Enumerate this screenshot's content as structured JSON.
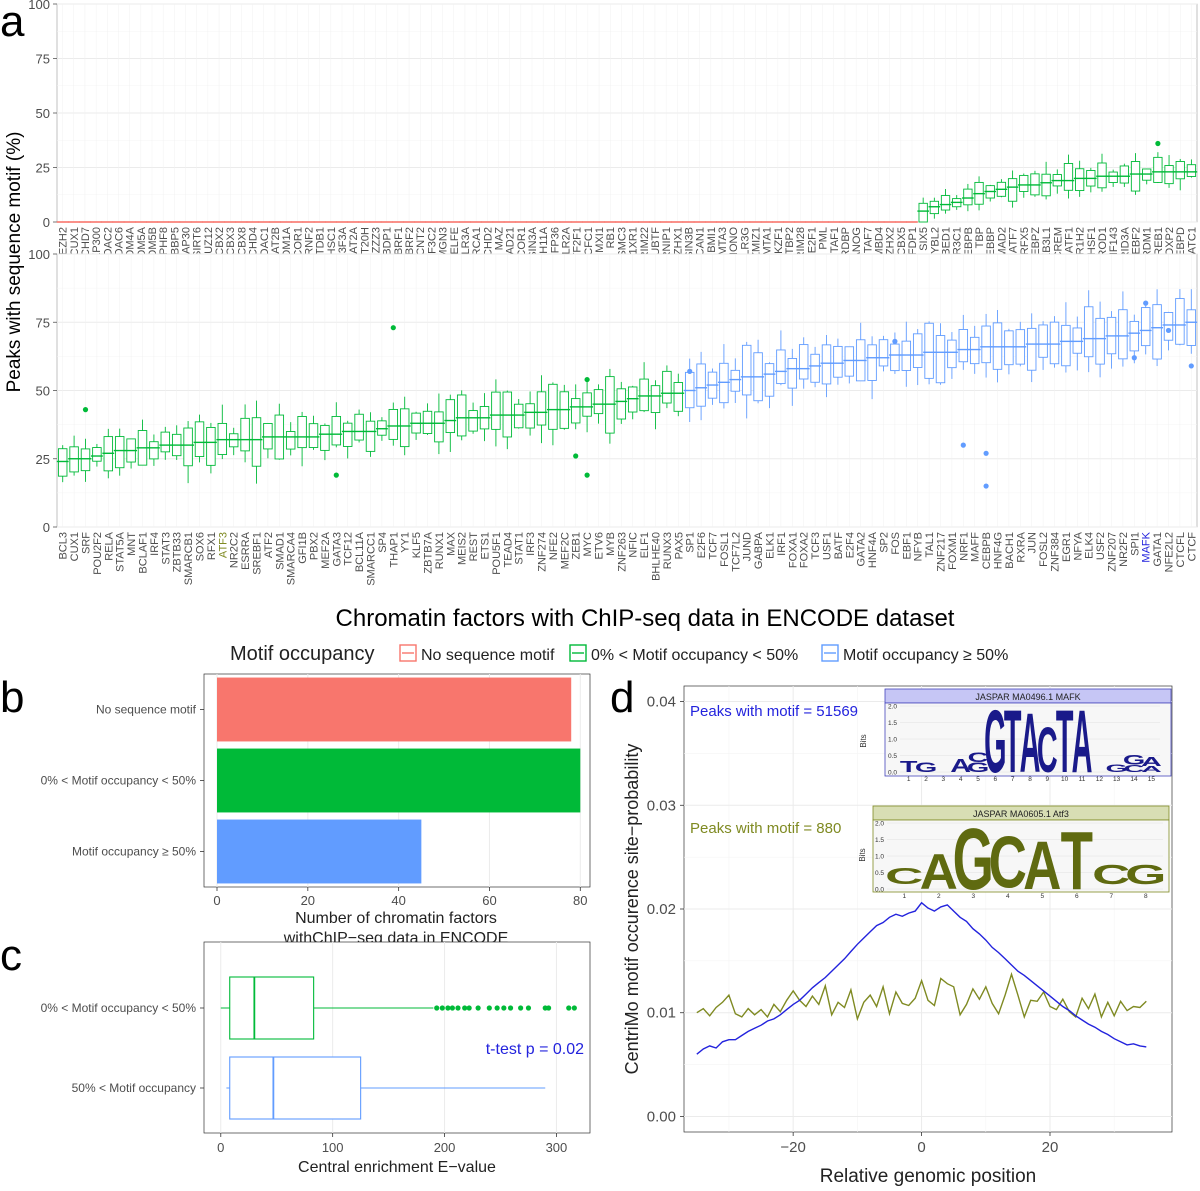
{
  "colors": {
    "red": "#F8766D",
    "green": "#00BA38",
    "blue": "#619CFF",
    "olive": "#7F8A22",
    "dark_blue": "#2323DD",
    "grid": "#ebebeb",
    "frame": "#999999"
  },
  "panel_labels": {
    "a": "a",
    "b": "b",
    "c": "c",
    "d": "d"
  },
  "annotations": {
    "peaks_mafk": "Peaks with motif = 51569",
    "peaks_atf3": "Peaks with motif = 880",
    "logo_mafk_title": "JASPAR MA0496.1 MAFK",
    "logo_atf3_title": "JASPAR MA0605.1 Atf3",
    "logo_bits_label": "Bits",
    "logo_mafk_seq": "TGAGCGTACTAGGCAA",
    "logo_atf3_seq": "CAGCATCG",
    "ttest": "t-test p = 0.02"
  },
  "chart_data": [
    {
      "panel": "a",
      "type": "box",
      "title": "",
      "ylabel": "Peaks with sequence motif (%)",
      "xlabel": "Chromatin factors with ChIP-seq data in ENCODE dataset",
      "ylim": [
        0,
        100
      ],
      "yticks": [
        0,
        25,
        50,
        75,
        100
      ],
      "legend": {
        "title": "Motif occupancy",
        "position": "bottom",
        "entries": [
          {
            "label": "No sequence motif",
            "key": "red"
          },
          {
            "label": "0% < Motif occupancy < 50%",
            "key": "green"
          },
          {
            "label": "Motif occupancy ≥ 50%",
            "key": "blue"
          }
        ]
      },
      "top_row": {
        "categories": [
          "EZH2",
          "CUX1",
          "CHD7",
          "EP300",
          "HDAC2",
          "HDAC6",
          "KDM4A",
          "KDM5A",
          "KDM5B",
          "PHF8",
          "RBBP5",
          "SAP30",
          "SIRT6",
          "SUZ12",
          "CBX2",
          "CBX3",
          "CBX8",
          "CHD4",
          "HDAC1",
          "KAT2B",
          "KDM1A",
          "NCOR1",
          "RNF2",
          "SETDB1",
          "WHSC1",
          "H3F3A",
          "KAT2A",
          "SUPT20H",
          "ZZZ3",
          "BDP1",
          "BRF1",
          "BRF2",
          "CCNT2",
          "GTF3C2",
          "HMGN3",
          "NELFE",
          "POLR3A",
          "BRCA1",
          "CHD2",
          "MAZ",
          "RAD21",
          "RCOR1",
          "SIN3A",
          "ZC3H11A",
          "ZFP36",
          "POLR2A",
          "GTF2F1",
          "HCFC1",
          "MXI1",
          "RB1",
          "SMC3",
          "TBL1XR1",
          "TRIM22",
          "UBTF",
          "WRNIP1",
          "ZHX1",
          "SIN3B",
          "ZKSCAN1",
          "BMI1",
          "MTA3",
          "NONO",
          "POLR3G",
          "ZMIZ1",
          "MTA1",
          "IKZF1",
          "CTBP2",
          "TRIM28",
          "HA-E2F1",
          "PML",
          "TAF1",
          "TARDBP",
          "NANOG",
          "TAF7",
          "MBD4",
          "ZHX2",
          "CBX5",
          "TFDP1",
          "SIX5",
          "MYBL2",
          "ZBED1",
          "NR3C1",
          "CEBPB",
          "TBP",
          "CREBBP",
          "SMAD2",
          "ATF7",
          "RFX5",
          "CEBPZ",
          "CREB3L1",
          "CREM",
          "ATF1",
          "NR1H2",
          "HSF1",
          "NEUROD1",
          "ZNF143",
          "ARID3A",
          "SREBF2",
          "PRDM1",
          "CREB1",
          "FOXP2",
          "CEBPD",
          "NFATC1"
        ],
        "medians": [
          0,
          0,
          0,
          0,
          0,
          0,
          0,
          0,
          0,
          0,
          0,
          0,
          0,
          0,
          0,
          0,
          0,
          0,
          0,
          0,
          0,
          0,
          0,
          0,
          0,
          0,
          0,
          0,
          0,
          0,
          0,
          0,
          0,
          0,
          0,
          0,
          0,
          0,
          0,
          0,
          0,
          0,
          0,
          0,
          0,
          0,
          0,
          0,
          0,
          0,
          0,
          0,
          0,
          0,
          0,
          0,
          0,
          0,
          0,
          0,
          0,
          0,
          0,
          0,
          0,
          0,
          0,
          0,
          0,
          0,
          0,
          0,
          0,
          0,
          0,
          0,
          0,
          5,
          7,
          8,
          9,
          11,
          13,
          14,
          15,
          16,
          17,
          17,
          18,
          19,
          19,
          20,
          20,
          21,
          21,
          21,
          22,
          22,
          23,
          23,
          23,
          23,
          24
        ],
        "groups": {
          "red_count": 77,
          "green_count": 25
        }
      },
      "bottom_row": {
        "categories": [
          "BCL3",
          "CUX1",
          "SRF",
          "POU2F2",
          "RELA",
          "STAT5A",
          "MNT",
          "BCLAF1",
          "IRF4",
          "STAT3",
          "ZBTB33",
          "SMARCB1",
          "SOX6",
          "RFX1",
          "ATF3",
          "NR2C2",
          "ESRRA",
          "SREBF1",
          "ATF2",
          "SMAD1",
          "SMARCA4",
          "GFI1B",
          "PBX2",
          "MEF2A",
          "GATA3",
          "TCF12",
          "BCL11A",
          "SMARCC1",
          "SP4",
          "THAP1",
          "YY1",
          "KLF5",
          "ZBTB7A",
          "RUNX1",
          "MAX",
          "MEIS2",
          "REST",
          "ETS1",
          "POU5F1",
          "TEAD4",
          "STAT1",
          "IRF3",
          "ZNF274",
          "NFE2",
          "MEF2C",
          "ZEB1",
          "MYC",
          "ETV6",
          "MYB",
          "ZNF263",
          "NFIC",
          "ELF1",
          "BHLHE40",
          "RUNX3",
          "PAX5",
          "SP1",
          "E2F6",
          "TCF7",
          "FOSL1",
          "TCF7L2",
          "JUND",
          "GABPA",
          "ELK1",
          "IRF1",
          "FOXA1",
          "FOXA2",
          "TCF3",
          "USF1",
          "BATF",
          "E2F4",
          "GATA2",
          "HNF4A",
          "SP2",
          "FOS",
          "EBF1",
          "NFYB",
          "TAL1",
          "ZNF217",
          "FOXM1",
          "NRF1",
          "MAFF",
          "CEBPB",
          "HNF4G",
          "BACH1",
          "RXRA",
          "JUN",
          "FOSL2",
          "ZNF384",
          "EGR1",
          "NFYA",
          "ELK4",
          "USF2",
          "ZNF207",
          "NR2F2",
          "SPI1",
          "MAFK",
          "GATA1",
          "NFE2L2",
          "CTCFL",
          "CTCF"
        ],
        "medians": [
          24,
          25,
          25,
          26,
          27,
          28,
          28,
          29,
          29,
          30,
          30,
          30,
          31,
          31,
          32,
          32,
          32,
          32,
          33,
          33,
          33,
          33,
          33,
          34,
          34,
          35,
          35,
          35,
          36,
          37,
          37,
          38,
          38,
          38,
          39,
          40,
          40,
          40,
          41,
          41,
          41,
          42,
          42,
          43,
          43,
          44,
          44,
          45,
          45,
          46,
          47,
          48,
          48,
          49,
          49,
          50,
          51,
          52,
          53,
          54,
          55,
          55,
          56,
          57,
          58,
          58,
          59,
          60,
          60,
          61,
          61,
          62,
          62,
          63,
          63,
          63,
          64,
          64,
          64,
          65,
          65,
          66,
          66,
          66,
          66,
          67,
          67,
          67,
          68,
          68,
          69,
          69,
          70,
          70,
          71,
          72,
          73,
          74,
          74,
          75,
          83,
          86
        ],
        "groups": {
          "green_count": 55,
          "blue_count": 47
        },
        "highlighted": {
          "ATF3": "olive",
          "MAFK": "dark_blue"
        }
      }
    },
    {
      "panel": "b",
      "type": "bar",
      "orientation": "horizontal",
      "categories": [
        "No sequence motif",
        "0% < Motif occupancy < 50%",
        "Motif occupancy ≥ 50%"
      ],
      "values": [
        78,
        80,
        45
      ],
      "xlabel_lines": [
        "Number of chromatin factors",
        "withChIP−seq data in ENCODE"
      ],
      "xlim": [
        0,
        85
      ],
      "xticks": [
        0,
        20,
        40,
        60,
        80
      ]
    },
    {
      "panel": "c",
      "type": "box",
      "orientation": "horizontal",
      "categories": [
        "0% < Motif occupancy < 50%",
        "50% < Motif occupancy"
      ],
      "boxes": [
        {
          "min": 0,
          "q1": 8,
          "median": 30,
          "q3": 83,
          "max": 190,
          "outliers": [
            193,
            198,
            203,
            207,
            212,
            218,
            222,
            230,
            240,
            247,
            253,
            259,
            268,
            275,
            290,
            293,
            311,
            316
          ]
        },
        {
          "min": 5,
          "q1": 8,
          "median": 47,
          "q3": 125,
          "max": 290,
          "outliers": []
        }
      ],
      "xlabel": "Central enrichment E−value",
      "xlim": [
        -15,
        330
      ],
      "xticks": [
        0,
        100,
        200,
        300
      ]
    },
    {
      "panel": "d",
      "type": "line",
      "xlabel": "Relative genomic position",
      "ylabel": "CentriMo motif occurence site−probability",
      "xlim": [
        -37,
        39
      ],
      "ylim": [
        -0.0015,
        0.0415
      ],
      "xticks": [
        -20,
        0,
        20
      ],
      "yticks": [
        0.0,
        0.01,
        0.02,
        0.03,
        0.04
      ],
      "ytick_labels": [
        "0.00",
        "0.01",
        "0.02",
        "0.03",
        "0.04"
      ],
      "x": [
        -35,
        -34,
        -33,
        -32,
        -31,
        -30,
        -29,
        -28,
        -27,
        -26,
        -25,
        -24,
        -23,
        -22,
        -21,
        -20,
        -19,
        -18,
        -17,
        -16,
        -15,
        -14,
        -13,
        -12,
        -11,
        -10,
        -9,
        -8,
        -7,
        -6,
        -5,
        -4,
        -3,
        -2,
        -1,
        0,
        1,
        2,
        3,
        4,
        5,
        6,
        7,
        8,
        9,
        10,
        11,
        12,
        13,
        14,
        15,
        16,
        17,
        18,
        19,
        20,
        21,
        22,
        23,
        24,
        25,
        26,
        27,
        28,
        29,
        30,
        31,
        32,
        33,
        34,
        35
      ],
      "series": [
        {
          "name": "MAFK",
          "color": "dark_blue",
          "values": [
            0.006,
            0.0065,
            0.0068,
            0.0066,
            0.0072,
            0.0074,
            0.0074,
            0.0078,
            0.0082,
            0.0085,
            0.0088,
            0.0092,
            0.0094,
            0.0098,
            0.0103,
            0.0108,
            0.0112,
            0.0118,
            0.0124,
            0.0129,
            0.0134,
            0.014,
            0.0146,
            0.0152,
            0.0159,
            0.0166,
            0.0172,
            0.0178,
            0.0184,
            0.0187,
            0.0192,
            0.0195,
            0.0193,
            0.0196,
            0.0198,
            0.0206,
            0.0201,
            0.0198,
            0.0202,
            0.0204,
            0.0198,
            0.0192,
            0.0188,
            0.0181,
            0.0176,
            0.017,
            0.0163,
            0.0158,
            0.0152,
            0.0146,
            0.014,
            0.0136,
            0.0131,
            0.0126,
            0.0121,
            0.0116,
            0.0111,
            0.0106,
            0.0102,
            0.0097,
            0.0093,
            0.0089,
            0.0086,
            0.0082,
            0.0079,
            0.0075,
            0.0072,
            0.0069,
            0.007,
            0.0068,
            0.0067
          ]
        },
        {
          "name": "ATF3",
          "color": "olive",
          "values": [
            0.01,
            0.0104,
            0.0097,
            0.0105,
            0.011,
            0.0117,
            0.0099,
            0.0096,
            0.0104,
            0.0098,
            0.0103,
            0.0096,
            0.0108,
            0.0101,
            0.0112,
            0.0121,
            0.0112,
            0.0106,
            0.0116,
            0.0108,
            0.0126,
            0.0098,
            0.011,
            0.0105,
            0.0122,
            0.0094,
            0.011,
            0.0117,
            0.0106,
            0.0125,
            0.0099,
            0.012,
            0.0109,
            0.0107,
            0.0114,
            0.0131,
            0.0112,
            0.0107,
            0.0133,
            0.0128,
            0.0125,
            0.0098,
            0.0108,
            0.0123,
            0.0113,
            0.0125,
            0.0109,
            0.0099,
            0.0117,
            0.0137,
            0.0117,
            0.0096,
            0.0112,
            0.0111,
            0.012,
            0.0106,
            0.0103,
            0.0113,
            0.0101,
            0.0096,
            0.0114,
            0.0104,
            0.0118,
            0.0096,
            0.011,
            0.0097,
            0.0111,
            0.0102,
            0.0106,
            0.0105,
            0.0111
          ]
        }
      ]
    }
  ]
}
